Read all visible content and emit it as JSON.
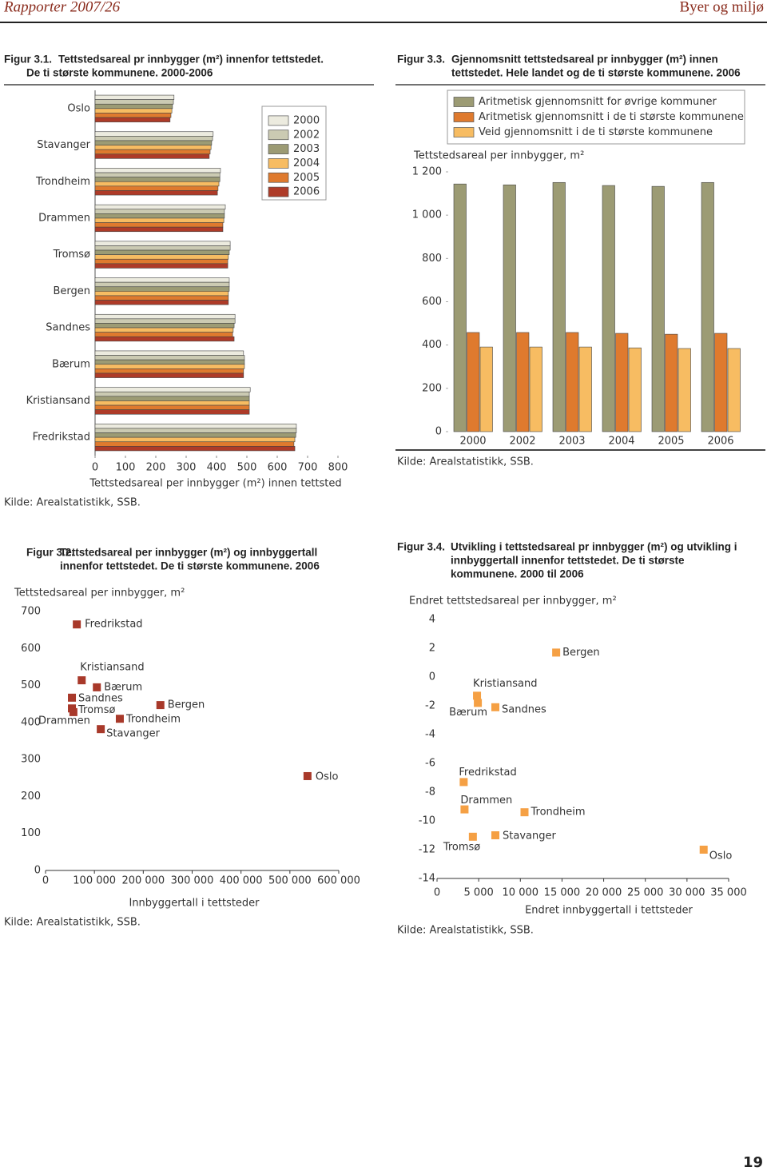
{
  "header": {
    "left": "Rapporter 2007/26",
    "right": "Byer og miljø"
  },
  "page_number": "19",
  "chart_data": [
    {
      "type": "bar",
      "orientation": "horizontal",
      "figure_label": "Figur 3.1.",
      "title": [
        "Tettstedsareal pr innbygger (m²) innenfor tettstedet.",
        "De ti største kommunene. 2000-2006"
      ],
      "categories": [
        "Oslo",
        "Stavanger",
        "Trondheim",
        "Drammen",
        "Tromsø",
        "Bergen",
        "Sandnes",
        "Bærum",
        "Kristiansand",
        "Fredrikstad"
      ],
      "series": [
        {
          "name": "2000",
          "color": "#ecebdf",
          "values": [
            260,
            389,
            413,
            429,
            445,
            442,
            461,
            489,
            511,
            663
          ]
        },
        {
          "name": "2002",
          "color": "#cbcab2",
          "values": [
            258,
            387,
            411,
            426,
            445,
            442,
            461,
            492,
            508,
            663
          ]
        },
        {
          "name": "2003",
          "color": "#9c9b74",
          "values": [
            255,
            384,
            411,
            426,
            442,
            442,
            458,
            492,
            508,
            661
          ]
        },
        {
          "name": "2004",
          "color": "#f7bc62",
          "values": [
            253,
            382,
            408,
            424,
            439,
            439,
            455,
            492,
            508,
            658
          ]
        },
        {
          "name": "2005",
          "color": "#df7a2e",
          "values": [
            250,
            379,
            405,
            421,
            437,
            439,
            453,
            489,
            508,
            655
          ]
        },
        {
          "name": "2006",
          "color": "#ae3b28",
          "values": [
            247,
            376,
            403,
            421,
            437,
            439,
            458,
            489,
            508,
            658
          ]
        }
      ],
      "xlim": [
        0,
        800
      ],
      "xticks": [
        0,
        100,
        200,
        300,
        400,
        500,
        600,
        700,
        800
      ],
      "xlabel": "Tettstedsareal per innbygger (m²) innen tettsted",
      "source": "Kilde: Arealstatistikk, SSB."
    },
    {
      "type": "bar",
      "orientation": "vertical",
      "figure_label": "Figur 3.3.",
      "title": [
        "Gjennomsnitt tettstedsareal pr innbygger (m²) innen",
        "tettstedet. Hele landet og de ti største kommunene. 2006"
      ],
      "categories": [
        "2000",
        "2002",
        "2003",
        "2004",
        "2005",
        "2006"
      ],
      "series": [
        {
          "name": "Aritmetisk gjennomsnitt for øvrige kommuner",
          "color": "#9c9b74",
          "values": [
            1144,
            1140,
            1151,
            1137,
            1133,
            1151
          ]
        },
        {
          "name": "Aritmetisk gjennomsnitt i de ti største kommunene",
          "color": "#df7a2e",
          "values": [
            458,
            458,
            458,
            454,
            450,
            454
          ]
        },
        {
          "name": "Veid gjennomsnitt i de ti største kommunene",
          "color": "#f7bc62",
          "values": [
            391,
            391,
            391,
            387,
            384,
            384
          ]
        }
      ],
      "ylabel": "Tettstedsareal per innbygger, m²",
      "ylim": [
        0,
        1200
      ],
      "yticks": [
        0,
        200,
        400,
        600,
        800,
        {
          "value": 1000,
          "label": "1 000"
        },
        {
          "value": 1200,
          "label": "1 200"
        }
      ],
      "source": "Kilde: Arealstatistikk, SSB."
    },
    {
      "type": "scatter",
      "figure_label": "Figur 3.2.",
      "title": [
        "Tettstedsareal per innbygger (m²) og innbyggertall",
        "innenfor tettstedet. De ti største kommunene. 2006"
      ],
      "labels": [
        "Oslo",
        "Stavanger",
        "Trondheim",
        "Drammen",
        "Tromsø",
        "Bergen",
        "Sandnes",
        "Bærum",
        "Kristiansand",
        "Fredrikstad"
      ],
      "x": [
        536000,
        113000,
        152000,
        57000,
        54000,
        235000,
        54000,
        105000,
        74000,
        64000
      ],
      "values": [
        255,
        382,
        410,
        428,
        438,
        447,
        467,
        495,
        514,
        665
      ],
      "color": "#a8392a",
      "xlim": [
        0,
        600000
      ],
      "xticks": [
        0,
        {
          "value": 100000,
          "label": "100 000"
        },
        {
          "value": 200000,
          "label": "200 000"
        },
        {
          "value": 300000,
          "label": "300 000"
        },
        {
          "value": 400000,
          "label": "400 000"
        },
        {
          "value": 500000,
          "label": "500 000"
        },
        {
          "value": 600000,
          "label": "600 000"
        }
      ],
      "ylim": [
        0,
        700
      ],
      "yticks": [
        0,
        100,
        200,
        300,
        400,
        500,
        600,
        700
      ],
      "xlabel": "Innbyggertall i tettsteder",
      "ylabel": "Tettstedsareal per innbygger, m²",
      "source": "Kilde: Arealstatistikk, SSB."
    },
    {
      "type": "scatter",
      "figure_label": "Figur 3.4.",
      "title": [
        "Utvikling i tettstedsareal pr innbygger (m²) og utvikling i",
        "innbyggertall innenfor tettstedet. De ti største",
        "kommunene. 2000 til 2006"
      ],
      "labels": [
        "Oslo",
        "Stavanger",
        "Trondheim",
        "Drammen",
        "Tromsø",
        "Bergen",
        "Sandnes",
        "Bærum",
        "Kristiansand",
        "Fredrikstad"
      ],
      "x": [
        32000,
        7000,
        10500,
        3300,
        4300,
        14300,
        7000,
        4900,
        4800,
        3200
      ],
      "values": [
        -12.0,
        -11.0,
        -9.4,
        -9.2,
        -11.1,
        1.7,
        -2.1,
        -1.8,
        -1.3,
        -7.3
      ],
      "color": "#f5a044",
      "xlim": [
        0,
        35000
      ],
      "xticks": [
        0,
        {
          "value": 5000,
          "label": "5 000"
        },
        {
          "value": 10000,
          "label": "10 000"
        },
        {
          "value": 15000,
          "label": "15 000"
        },
        {
          "value": 20000,
          "label": "20 000"
        },
        {
          "value": 25000,
          "label": "25 000"
        },
        {
          "value": 30000,
          "label": "30 000"
        },
        {
          "value": 35000,
          "label": "35 000"
        }
      ],
      "ylim": [
        -14,
        4
      ],
      "yticks": [
        -14,
        -12,
        -10,
        -8,
        -6,
        -4,
        -2,
        0,
        2,
        4
      ],
      "xlabel": "Endret innbyggertall i tettsteder",
      "ylabel": "Endret tettstedsareal per innbygger, m²",
      "source": "Kilde: Arealstatistikk, SSB."
    }
  ]
}
